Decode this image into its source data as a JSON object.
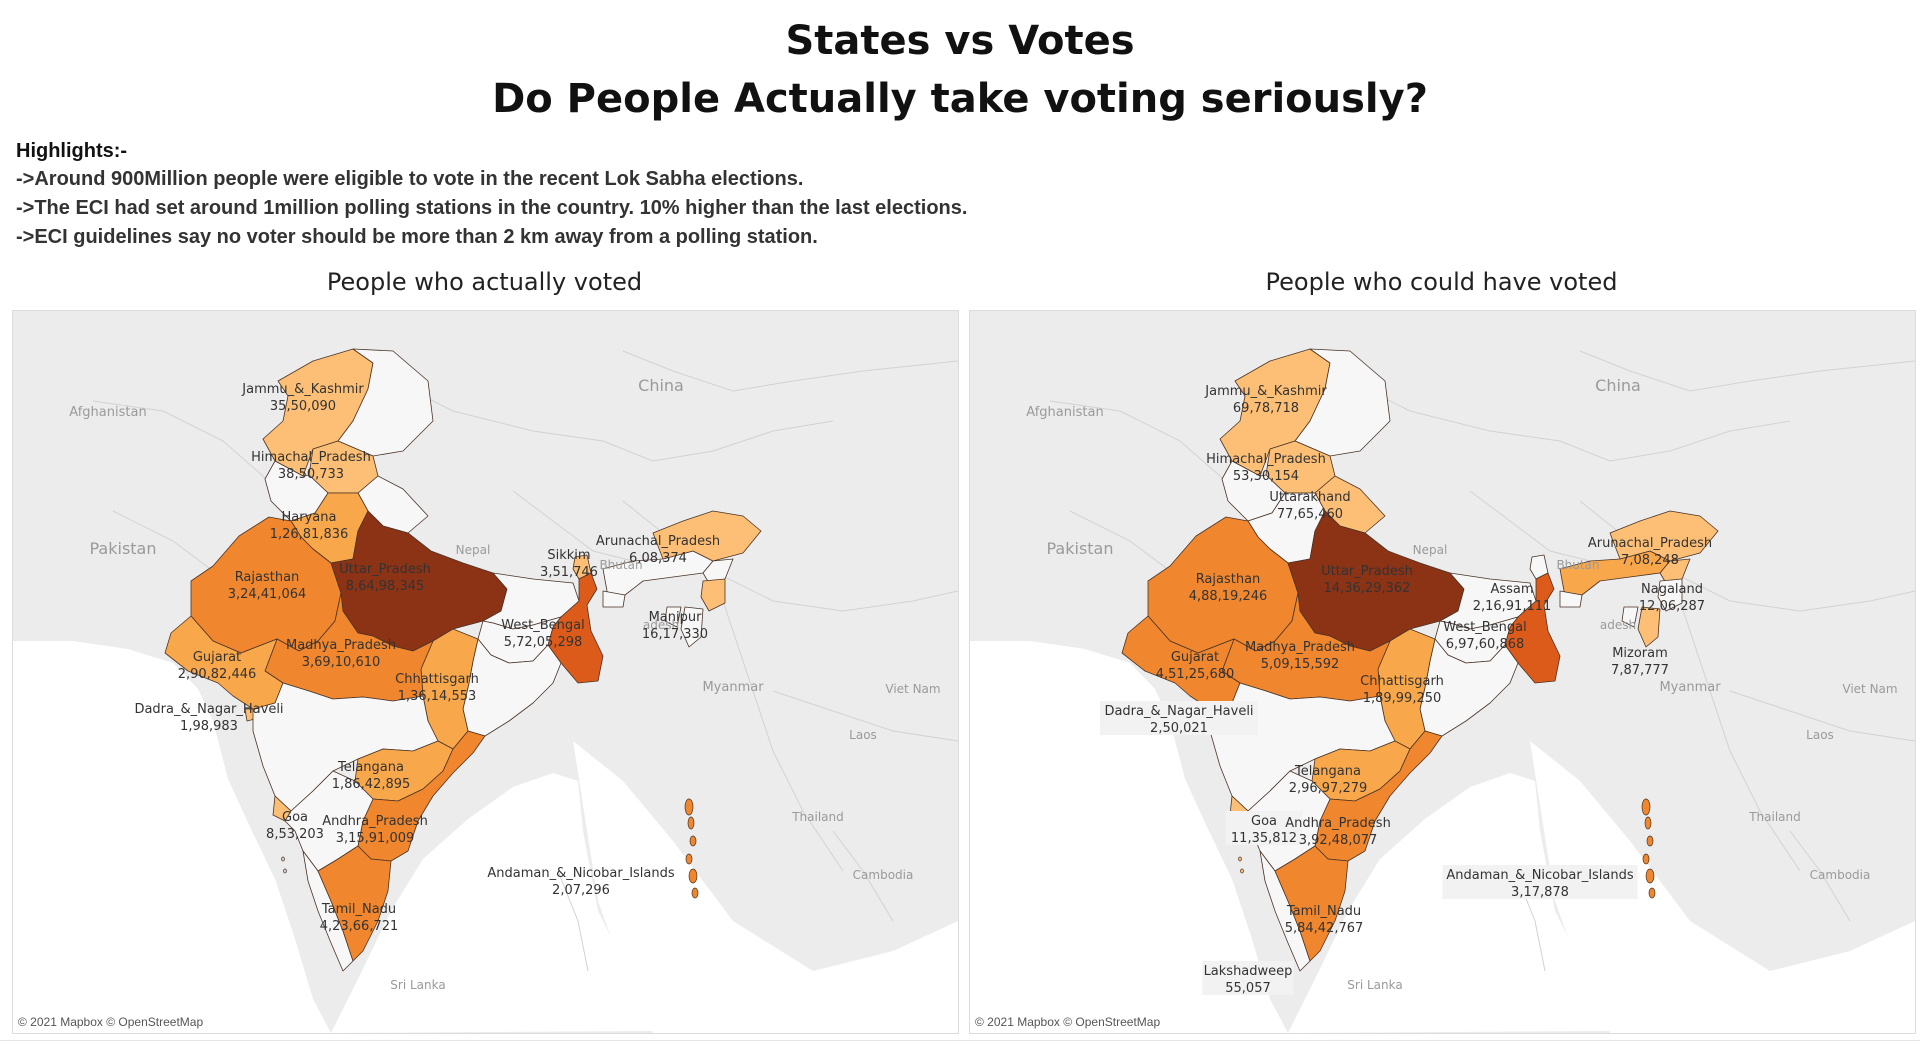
{
  "title": {
    "line1": "States vs Votes",
    "line2": "Do People Actually take voting seriously?"
  },
  "highlights": {
    "heading": "Highlights:-",
    "items": [
      "->Around 900Million people were eligible to vote in the recent Lok Sabha elections.",
      "->The ECI had set around 1million polling stations in the country. 10% higher than the last elections.",
      "->ECI guidelines say no voter should be more than 2 km away from a polling station."
    ]
  },
  "colors": {
    "lightest": "#fdbf75",
    "light": "#f9a74b",
    "medium": "#f0862e",
    "dark": "#dc5b1b",
    "darkest": "#8c3316",
    "land": "#ececec",
    "water": "#ffffff",
    "label_box": "#f2f2f2"
  },
  "maps": [
    {
      "title": "People who actually voted",
      "attribution": "© 2021 Mapbox © OpenStreetMap",
      "context_labels": [
        "China",
        "Afghanistan",
        "Pakistan",
        "Nepal",
        "Bhutan",
        "Myanmar",
        "Viet Nam",
        "Laos",
        "Thailand",
        "Cambodia",
        "Sri Lanka",
        "adesh"
      ],
      "regions": [
        {
          "name": "Jammu_&_Kashmir",
          "value": "35,50,090",
          "level": "lightest"
        },
        {
          "name": "Himachal_Pradesh",
          "value": "38,50,733",
          "level": "lightest"
        },
        {
          "name": "Haryana",
          "value": "1,26,81,836",
          "level": "light"
        },
        {
          "name": "Uttar_Pradesh",
          "value": "8,64,98,345",
          "level": "darkest"
        },
        {
          "name": "Rajasthan",
          "value": "3,24,41,064",
          "level": "medium"
        },
        {
          "name": "Sikkim",
          "value": "3,51,746",
          "level": "lightest"
        },
        {
          "name": "Arunachal_Pradesh",
          "value": "6,08,374",
          "level": "lightest"
        },
        {
          "name": "Manipur",
          "value": "16,17,330",
          "level": "lightest"
        },
        {
          "name": "West_Bengal",
          "value": "5,72,05,298",
          "level": "dark"
        },
        {
          "name": "Madhya_Pradesh",
          "value": "3,69,10,610",
          "level": "medium"
        },
        {
          "name": "Gujarat",
          "value": "2,90,82,446",
          "level": "light"
        },
        {
          "name": "Chhattisgarh",
          "value": "1,36,14,553",
          "level": "light"
        },
        {
          "name": "Dadra_&_Nagar_Haveli",
          "value": "1,98,983",
          "level": "lightest"
        },
        {
          "name": "Telangana",
          "value": "1,86,42,895",
          "level": "light"
        },
        {
          "name": "Goa",
          "value": "8,53,203",
          "level": "lightest"
        },
        {
          "name": "Andhra_Pradesh",
          "value": "3,15,91,009",
          "level": "medium"
        },
        {
          "name": "Tamil_Nadu",
          "value": "4,23,66,721",
          "level": "medium"
        },
        {
          "name": "Andaman_&_Nicobar_Islands",
          "value": "2,07,296",
          "level": "medium"
        }
      ]
    },
    {
      "title": "People who could have voted",
      "attribution": "© 2021 Mapbox © OpenStreetMap",
      "context_labels": [
        "China",
        "Afghanistan",
        "Pakistan",
        "Nepal",
        "Bhutan",
        "Myanmar",
        "Viet Nam",
        "Laos",
        "Thailand",
        "Cambodia",
        "Sri Lanka",
        "adesh"
      ],
      "regions": [
        {
          "name": "Jammu_&_Kashmir",
          "value": "69,78,718",
          "level": "lightest"
        },
        {
          "name": "Himachal_Pradesh",
          "value": "53,30,154",
          "level": "lightest"
        },
        {
          "name": "Uttarakhand",
          "value": "77,65,460",
          "level": "lightest"
        },
        {
          "name": "Uttar_Pradesh",
          "value": "14,36,29,362",
          "level": "darkest"
        },
        {
          "name": "Rajasthan",
          "value": "4,88,19,246",
          "level": "medium"
        },
        {
          "name": "Arunachal_Pradesh",
          "value": "7,08,248",
          "level": "lightest"
        },
        {
          "name": "Assam",
          "value": "2,16,91,111",
          "level": "light"
        },
        {
          "name": "Nagaland",
          "value": "12,06,287",
          "level": "lightest"
        },
        {
          "name": "Mizoram",
          "value": "7,87,777",
          "level": "lightest"
        },
        {
          "name": "West_Bengal",
          "value": "6,97,60,868",
          "level": "dark"
        },
        {
          "name": "Madhya_Pradesh",
          "value": "5,09,15,592",
          "level": "medium"
        },
        {
          "name": "Gujarat",
          "value": "4,51,25,680",
          "level": "medium"
        },
        {
          "name": "Chhattisgarh",
          "value": "1,89,99,250",
          "level": "light"
        },
        {
          "name": "Dadra_&_Nagar_Haveli",
          "value": "2,50,021",
          "level": "lightest"
        },
        {
          "name": "Telangana",
          "value": "2,96,97,279",
          "level": "light"
        },
        {
          "name": "Goa",
          "value": "11,35,812",
          "level": "lightest"
        },
        {
          "name": "Andhra_Pradesh",
          "value": "3,92,48,077",
          "level": "medium"
        },
        {
          "name": "Tamil_Nadu",
          "value": "5,84,42,767",
          "level": "medium"
        },
        {
          "name": "Andaman_&_Nicobar_Islands",
          "value": "3,17,878",
          "level": "medium"
        },
        {
          "name": "Lakshadweep",
          "value": "55,057",
          "level": "lightest"
        }
      ]
    }
  ]
}
